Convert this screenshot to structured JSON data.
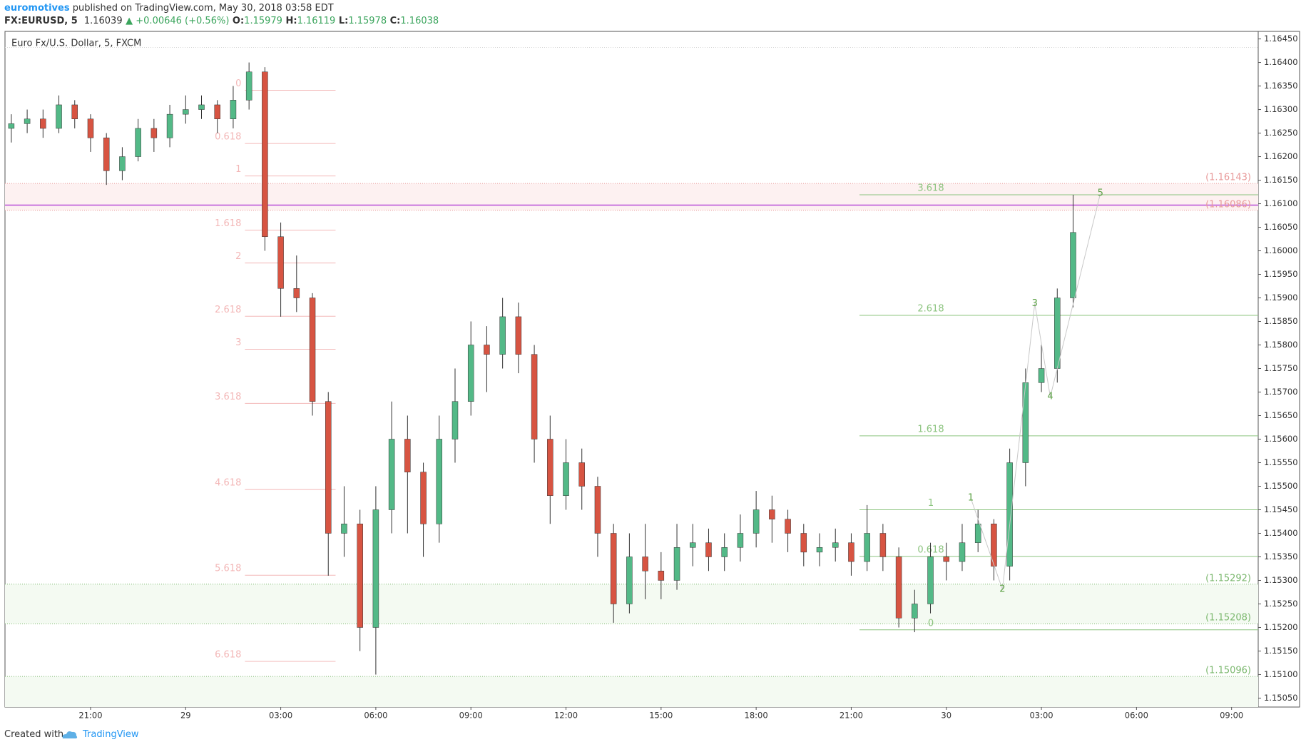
{
  "header": {
    "author": "euromotives",
    "published": " published on TradingView.com, May 30, 2018 03:58 EDT",
    "symbol": "FX:EURUSD, 5",
    "last": "1.16039",
    "change": "▲ +0.00646 (+0.56%)",
    "o_label": "O:",
    "o": "1.15979",
    "h_label": "H:",
    "h": "1.16119",
    "l_label": "L:",
    "l": "1.15978",
    "c_label": "C:",
    "c": "1.16038"
  },
  "footer": {
    "created": "Created with",
    "brand": "TradingView"
  },
  "chart_data": {
    "type": "candlestick",
    "title": "Euro Fx/U.S. Dollar, 5, FXCM",
    "up_color": "#53b987",
    "down_color": "#d75442",
    "x": [
      18.5,
      19,
      19.5,
      20,
      20.5,
      21,
      21.5,
      22,
      22.5,
      23,
      23.5,
      24,
      24.5,
      25,
      25.5,
      26,
      26.5,
      27,
      27.5,
      28,
      28.5,
      29,
      29.5,
      30,
      30.5,
      31,
      31.5,
      32,
      32.5,
      33,
      33.5,
      34,
      34.5,
      35,
      35.5,
      36,
      36.5,
      37,
      37.5,
      38,
      38.5,
      39,
      39.5,
      40,
      40.5,
      41,
      41.5,
      42,
      42.5,
      43,
      43.5,
      44,
      44.5,
      45,
      45.5,
      46,
      46.5,
      47,
      47.5,
      48,
      48.5,
      49,
      49.5,
      50,
      50.5,
      51,
      51.5,
      52
    ],
    "open": [
      1.1626,
      1.1627,
      1.1628,
      1.1626,
      1.1631,
      1.1628,
      1.1624,
      1.1617,
      1.162,
      1.1626,
      1.1624,
      1.1629,
      1.163,
      1.1631,
      1.1628,
      1.1632,
      1.1638,
      1.1603,
      1.1592,
      1.159,
      1.1568,
      1.154,
      1.1542,
      1.152,
      1.1545,
      1.156,
      1.1553,
      1.1542,
      1.156,
      1.1568,
      1.158,
      1.1578,
      1.1586,
      1.1578,
      1.156,
      1.1548,
      1.1555,
      1.155,
      1.154,
      1.1525,
      1.1535,
      1.1532,
      1.153,
      1.1537,
      1.1538,
      1.1535,
      1.1537,
      1.154,
      1.1545,
      1.1543,
      1.154,
      1.1536,
      1.1537,
      1.1538,
      1.1534,
      1.154,
      1.1535,
      1.1522,
      1.1525,
      1.1535,
      1.1534,
      1.1538,
      1.1542,
      1.1533,
      1.1555,
      1.1572,
      1.1575,
      1.159
    ],
    "high": [
      1.1629,
      1.163,
      1.163,
      1.1633,
      1.1632,
      1.1629,
      1.1625,
      1.1622,
      1.1628,
      1.1628,
      1.1631,
      1.1633,
      1.1633,
      1.1632,
      1.1635,
      1.164,
      1.1639,
      1.1606,
      1.1599,
      1.1591,
      1.157,
      1.155,
      1.1545,
      1.155,
      1.1568,
      1.1565,
      1.1555,
      1.1565,
      1.1575,
      1.1585,
      1.1584,
      1.159,
      1.1589,
      1.158,
      1.1565,
      1.156,
      1.1558,
      1.1552,
      1.1542,
      1.154,
      1.1542,
      1.1536,
      1.1542,
      1.1542,
      1.1541,
      1.154,
      1.1544,
      1.1549,
      1.1548,
      1.1545,
      1.1542,
      1.154,
      1.1541,
      1.154,
      1.1546,
      1.1542,
      1.1537,
      1.1528,
      1.1538,
      1.1538,
      1.1542,
      1.1545,
      1.1543,
      1.1558,
      1.1575,
      1.158,
      1.1592,
      1.16119
    ],
    "low": [
      1.1623,
      1.1625,
      1.1624,
      1.1625,
      1.1626,
      1.1621,
      1.1614,
      1.1615,
      1.1619,
      1.1621,
      1.1622,
      1.1627,
      1.1628,
      1.1625,
      1.1626,
      1.163,
      1.16,
      1.1586,
      1.1587,
      1.1565,
      1.1531,
      1.1535,
      1.1515,
      1.151,
      1.154,
      1.154,
      1.1535,
      1.1538,
      1.1555,
      1.1565,
      1.157,
      1.1575,
      1.1574,
      1.1555,
      1.1542,
      1.1545,
      1.1545,
      1.1535,
      1.1521,
      1.1523,
      1.1526,
      1.1526,
      1.1528,
      1.1533,
      1.1532,
      1.1532,
      1.1534,
      1.1537,
      1.1538,
      1.1536,
      1.1533,
      1.1533,
      1.1534,
      1.1531,
      1.1532,
      1.1532,
      1.152,
      1.1519,
      1.1523,
      1.153,
      1.1532,
      1.1536,
      1.153,
      1.153,
      1.155,
      1.157,
      1.1572,
      1.1588
    ],
    "close": [
      1.1627,
      1.1628,
      1.1626,
      1.1631,
      1.1628,
      1.1624,
      1.1617,
      1.162,
      1.1626,
      1.1624,
      1.1629,
      1.163,
      1.1631,
      1.1628,
      1.1632,
      1.1638,
      1.1603,
      1.1592,
      1.159,
      1.1568,
      1.154,
      1.1542,
      1.152,
      1.1545,
      1.156,
      1.1553,
      1.1542,
      1.156,
      1.1568,
      1.158,
      1.1578,
      1.1586,
      1.1578,
      1.156,
      1.1548,
      1.1555,
      1.155,
      1.154,
      1.1525,
      1.1535,
      1.1532,
      1.153,
      1.1537,
      1.1538,
      1.1535,
      1.1537,
      1.154,
      1.1545,
      1.1543,
      1.154,
      1.1536,
      1.1537,
      1.1538,
      1.1534,
      1.154,
      1.1535,
      1.1522,
      1.1525,
      1.1535,
      1.1534,
      1.1538,
      1.1542,
      1.1533,
      1.1555,
      1.1572,
      1.1575,
      1.159,
      1.16039
    ],
    "xlim": [
      18.3,
      57.84
    ],
    "xticks": [
      {
        "value": 21,
        "label": "21:00"
      },
      {
        "value": 24,
        "label": "29"
      },
      {
        "value": 27,
        "label": "03:00"
      },
      {
        "value": 30,
        "label": "06:00"
      },
      {
        "value": 33,
        "label": "09:00"
      },
      {
        "value": 36,
        "label": "12:00"
      },
      {
        "value": 39,
        "label": "15:00"
      },
      {
        "value": 42,
        "label": "18:00"
      },
      {
        "value": 45,
        "label": "21:00"
      },
      {
        "value": 48,
        "label": "30"
      },
      {
        "value": 51,
        "label": "03:00"
      },
      {
        "value": 54,
        "label": "06:00"
      },
      {
        "value": 57,
        "label": "09:00"
      }
    ],
    "ylim": [
      1.15031,
      1.16466
    ],
    "yticks": [
      {
        "value": 1.1505,
        "label": "1.15050"
      },
      {
        "value": 1.151,
        "label": "1.15100"
      },
      {
        "value": 1.1515,
        "label": "1.15150"
      },
      {
        "value": 1.152,
        "label": "1.15200"
      },
      {
        "value": 1.1525,
        "label": "1.15250"
      },
      {
        "value": 1.153,
        "label": "1.15300"
      },
      {
        "value": 1.1535,
        "label": "1.15350"
      },
      {
        "value": 1.154,
        "label": "1.15400"
      },
      {
        "value": 1.1545,
        "label": "1.15450"
      },
      {
        "value": 1.155,
        "label": "1.15500"
      },
      {
        "value": 1.1555,
        "label": "1.15550"
      },
      {
        "value": 1.156,
        "label": "1.15600"
      },
      {
        "value": 1.1565,
        "label": "1.15650"
      },
      {
        "value": 1.157,
        "label": "1.15700"
      },
      {
        "value": 1.1575,
        "label": "1.15750"
      },
      {
        "value": 1.158,
        "label": "1.15800"
      },
      {
        "value": 1.1585,
        "label": "1.15850"
      },
      {
        "value": 1.159,
        "label": "1.15900"
      },
      {
        "value": 1.1595,
        "label": "1.15950"
      },
      {
        "value": 1.16,
        "label": "1.16000"
      },
      {
        "value": 1.1605,
        "label": "1.16050"
      },
      {
        "value": 1.161,
        "label": "1.16100"
      },
      {
        "value": 1.1615,
        "label": "1.16150"
      },
      {
        "value": 1.162,
        "label": "1.16200"
      },
      {
        "value": 1.1625,
        "label": "1.16250"
      },
      {
        "value": 1.163,
        "label": "1.16300"
      },
      {
        "value": 1.1635,
        "label": "1.16350"
      },
      {
        "value": 1.164,
        "label": "1.16400"
      },
      {
        "value": 1.1645,
        "label": "1.16450"
      }
    ],
    "price_labels": [
      {
        "value": 1.16143,
        "label": "(1.16143)",
        "color": "#e89a9a",
        "fill_below": "#fdf1f1"
      },
      {
        "value": 1.16086,
        "label": "(1.16086)",
        "color": "#e89a9a"
      },
      {
        "value": 1.15292,
        "label": "(1.15292)",
        "color": "#7cb86f",
        "fill_below": "#f4faf2"
      },
      {
        "value": 1.15208,
        "label": "(1.15208)",
        "color": "#7cb86f"
      },
      {
        "value": 1.15096,
        "label": "(1.15096)",
        "color": "#7cb86f",
        "fill_below": "#f4faf2"
      }
    ],
    "hlines": [
      {
        "value": 1.16432,
        "color": "#d6d6d6",
        "dash": true
      },
      {
        "value": 1.16097,
        "color": "#b84fd8",
        "dash": false
      }
    ],
    "fib_left": {
      "color": "#f3b7b7",
      "x_from": 25.87,
      "x_to": 28.73,
      "levels": [
        {
          "value": 1.16341,
          "label": "0"
        },
        {
          "value": 1.16228,
          "label": "0.618"
        },
        {
          "value": 1.16159,
          "label": "1"
        },
        {
          "value": 1.16044,
          "label": "1.618"
        },
        {
          "value": 1.15974,
          "label": "2"
        },
        {
          "value": 1.15861,
          "label": "2.618"
        },
        {
          "value": 1.15791,
          "label": "3"
        },
        {
          "value": 1.15676,
          "label": "3.618"
        },
        {
          "value": 1.15493,
          "label": "4.618"
        },
        {
          "value": 1.15311,
          "label": "5.618"
        },
        {
          "value": 1.15128,
          "label": "6.618"
        }
      ]
    },
    "fib_right": {
      "color": "#8cc47f",
      "x_from": 45.26,
      "levels": [
        {
          "value": 1.15195,
          "label": "0"
        },
        {
          "value": 1.15351,
          "label": "0.618"
        },
        {
          "value": 1.1545,
          "label": "1"
        },
        {
          "value": 1.15607,
          "label": "1.618"
        },
        {
          "value": 1.15863,
          "label": "2.618"
        },
        {
          "value": 1.16119,
          "label": "3.618"
        }
      ]
    },
    "waves": [
      {
        "label": "1",
        "x": 48.77,
        "y": 1.15475
      },
      {
        "label": "2",
        "x": 49.77,
        "y": 1.15281
      },
      {
        "label": "3",
        "x": 50.79,
        "y": 1.15888
      },
      {
        "label": "4",
        "x": 51.28,
        "y": 1.1569
      },
      {
        "label": "5",
        "x": 52.86,
        "y": 1.16122
      }
    ]
  }
}
